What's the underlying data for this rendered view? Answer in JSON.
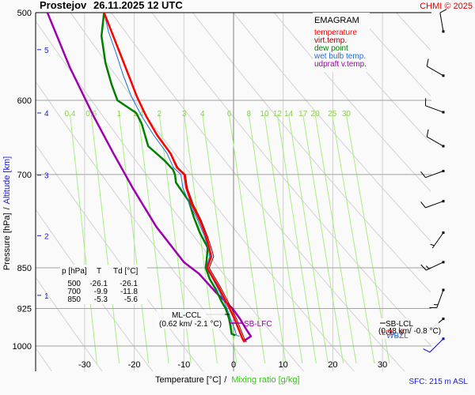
{
  "header": {
    "station": "Prostejov",
    "datetime": "26.11.2025 12 UTC",
    "copyright": "CHMI © 2025"
  },
  "chart_data": {
    "type": "line",
    "title": "EMAGRAM",
    "xlabel": "Temperature [°C]",
    "xlabel_secondary": "Mixing ratio [g/kg]",
    "xlabel_separator": "/",
    "ylabel": "Pressure [hPa]",
    "ylabel_secondary": "Altitude [km]",
    "ylabel_separator": "/",
    "xlim": [
      -38,
      42
    ],
    "ylim": [
      1000,
      500
    ],
    "yscale": "log",
    "x_ticks": [
      -30,
      -20,
      -10,
      0,
      10,
      20,
      30
    ],
    "y_ticks": [
      500,
      600,
      700,
      850,
      925,
      1000
    ],
    "altitude_ticks": [
      {
        "km": "5",
        "p": 540
      },
      {
        "km": "4",
        "p": 616
      },
      {
        "km": "3",
        "p": 701
      },
      {
        "km": "2",
        "p": 795
      },
      {
        "km": "1",
        "p": 900
      }
    ],
    "mixing_ratio_labels": [
      "0.4",
      "0.6",
      "1",
      "1.4",
      "2",
      "3",
      "4",
      "6",
      "8",
      "10",
      "12",
      "14",
      "17",
      "20",
      "25",
      "30"
    ],
    "legend": [
      {
        "label": "temperature",
        "color": "#ff0000"
      },
      {
        "label": "virt.temp.",
        "color": "#8b0000"
      },
      {
        "label": "dew point",
        "color": "#008000"
      },
      {
        "label": "wet bulb temp.",
        "color": "#1e6fe0"
      },
      {
        "label": "udpraft v.temp.",
        "color": "#a000b0"
      }
    ],
    "legend_position": "top-right",
    "series": [
      {
        "name": "temperature",
        "color": "#ff0000",
        "points": [
          [
            -26.1,
            500
          ],
          [
            -24.6,
            520
          ],
          [
            -22.8,
            545
          ],
          [
            -21.1,
            570
          ],
          [
            -19.5,
            595
          ],
          [
            -17.6,
            620
          ],
          [
            -15.4,
            645
          ],
          [
            -12.7,
            670
          ],
          [
            -11.4,
            690
          ],
          [
            -9.9,
            700
          ],
          [
            -9.5,
            720
          ],
          [
            -8.4,
            745
          ],
          [
            -6.8,
            770
          ],
          [
            -5.6,
            795
          ],
          [
            -4.9,
            815
          ],
          [
            -4.5,
            830
          ],
          [
            -5.3,
            850
          ],
          [
            -4.3,
            865
          ],
          [
            -3.0,
            885
          ],
          [
            -1.9,
            905
          ],
          [
            -0.8,
            925
          ],
          [
            0.2,
            945
          ],
          [
            1.0,
            965
          ],
          [
            1.8,
            985
          ],
          [
            2.2,
            992
          ]
        ]
      },
      {
        "name": "virt.temp.",
        "color": "#8b0000",
        "points": [
          [
            -26.0,
            500
          ],
          [
            -24.5,
            520
          ],
          [
            -22.7,
            545
          ],
          [
            -21.0,
            570
          ],
          [
            -19.4,
            595
          ],
          [
            -17.5,
            620
          ],
          [
            -15.3,
            645
          ],
          [
            -12.6,
            670
          ],
          [
            -11.2,
            690
          ],
          [
            -9.7,
            700
          ],
          [
            -9.3,
            720
          ],
          [
            -8.1,
            745
          ],
          [
            -6.5,
            770
          ],
          [
            -5.3,
            795
          ],
          [
            -4.5,
            815
          ],
          [
            -4.0,
            830
          ],
          [
            -4.9,
            850
          ],
          [
            -3.9,
            865
          ],
          [
            -2.6,
            885
          ],
          [
            -1.5,
            905
          ],
          [
            -0.4,
            925
          ],
          [
            0.6,
            945
          ],
          [
            1.4,
            965
          ],
          [
            2.2,
            985
          ],
          [
            2.6,
            992
          ]
        ]
      },
      {
        "name": "dew point",
        "color": "#008000",
        "points": [
          [
            -26.1,
            500
          ],
          [
            -26.6,
            525
          ],
          [
            -25.8,
            555
          ],
          [
            -24.6,
            580
          ],
          [
            -23.4,
            600
          ],
          [
            -19.6,
            616
          ],
          [
            -18.5,
            630
          ],
          [
            -17.2,
            660
          ],
          [
            -13.9,
            680
          ],
          [
            -12.2,
            693
          ],
          [
            -11.8,
            700
          ],
          [
            -11.6,
            712
          ],
          [
            -9.0,
            740
          ],
          [
            -8.0,
            765
          ],
          [
            -6.8,
            790
          ],
          [
            -5.2,
            815
          ],
          [
            -5.4,
            835
          ],
          [
            -5.6,
            850
          ],
          [
            -4.8,
            870
          ],
          [
            -3.5,
            890
          ],
          [
            -2.5,
            910
          ],
          [
            -1.6,
            925
          ],
          [
            -0.9,
            945
          ],
          [
            -0.6,
            960
          ],
          [
            -0.4,
            975
          ],
          [
            0.4,
            978
          ]
        ]
      },
      {
        "name": "wet bulb temp.",
        "color": "#1e6fe0",
        "points": [
          [
            -26.1,
            500
          ],
          [
            -25.2,
            520
          ],
          [
            -23.6,
            545
          ],
          [
            -22.2,
            570
          ],
          [
            -20.6,
            595
          ],
          [
            -18.5,
            620
          ],
          [
            -16.1,
            645
          ],
          [
            -13.4,
            670
          ],
          [
            -12.1,
            690
          ],
          [
            -10.6,
            700
          ],
          [
            -10.2,
            720
          ],
          [
            -8.8,
            745
          ],
          [
            -7.2,
            770
          ],
          [
            -5.9,
            795
          ],
          [
            -5.1,
            815
          ],
          [
            -4.8,
            830
          ],
          [
            -5.5,
            850
          ],
          [
            -4.5,
            865
          ],
          [
            -3.3,
            885
          ],
          [
            -2.2,
            905
          ],
          [
            -1.3,
            925
          ],
          [
            -0.6,
            945
          ],
          [
            0.2,
            965
          ],
          [
            0.6,
            978
          ],
          [
            1.2,
            980
          ]
        ]
      },
      {
        "name": "udpraft v.temp.",
        "color": "#a000b0",
        "points": [
          [
            -37.5,
            500
          ],
          [
            -33.0,
            560
          ],
          [
            -28.2,
            620
          ],
          [
            -24.2,
            670
          ],
          [
            -20.3,
            720
          ],
          [
            -15.6,
            780
          ],
          [
            -10.0,
            840
          ],
          [
            -7.0,
            860
          ],
          [
            -3.5,
            895
          ],
          [
            -0.2,
            925
          ],
          [
            1.3,
            945
          ],
          [
            2.5,
            965
          ],
          [
            3.5,
            980
          ],
          [
            2.0,
            990
          ]
        ]
      }
    ],
    "wind_barbs": [
      {
        "p": 520,
        "dir_deg": 350,
        "kt": 10
      },
      {
        "p": 570,
        "dir_deg": 300,
        "kt": 10
      },
      {
        "p": 615,
        "dir_deg": 290,
        "kt": 10
      },
      {
        "p": 660,
        "dir_deg": 300,
        "kt": 10
      },
      {
        "p": 695,
        "dir_deg": 250,
        "kt": 10
      },
      {
        "p": 740,
        "dir_deg": 250,
        "kt": 10
      },
      {
        "p": 790,
        "dir_deg": 215,
        "kt": 5
      },
      {
        "p": 840,
        "dir_deg": 245,
        "kt": 15
      },
      {
        "p": 890,
        "dir_deg": 200,
        "kt": 15
      },
      {
        "p": 945,
        "dir_deg": 230,
        "kt": 15
      },
      {
        "p": 985,
        "dir_deg": 225,
        "kt": 10
      }
    ],
    "table": {
      "headers": [
        "p [hPa]",
        "T",
        "Td [°C]"
      ],
      "rows": [
        [
          "500",
          "-26.1",
          "-26.1"
        ],
        [
          "700",
          "-9.9",
          "-11.8"
        ],
        [
          "850",
          "-5.3",
          "-5.6"
        ]
      ]
    },
    "annotations": {
      "ml_ccl": {
        "label": "ML-CCL",
        "detail": "(0.62 km/ -2.1 °C)",
        "p": 935,
        "t": -2.1
      },
      "sb_lfc": {
        "label": "SB-LFC",
        "p": 960
      },
      "sb_lcl": {
        "label": "SB-LCL",
        "detail": "(0.48 km/ -0.8 °C)"
      },
      "lcl_marker": "LCL_V",
      "wbzl": "WBZL"
    },
    "surface_info": "SFC: 215 m ASL",
    "grid": true
  }
}
